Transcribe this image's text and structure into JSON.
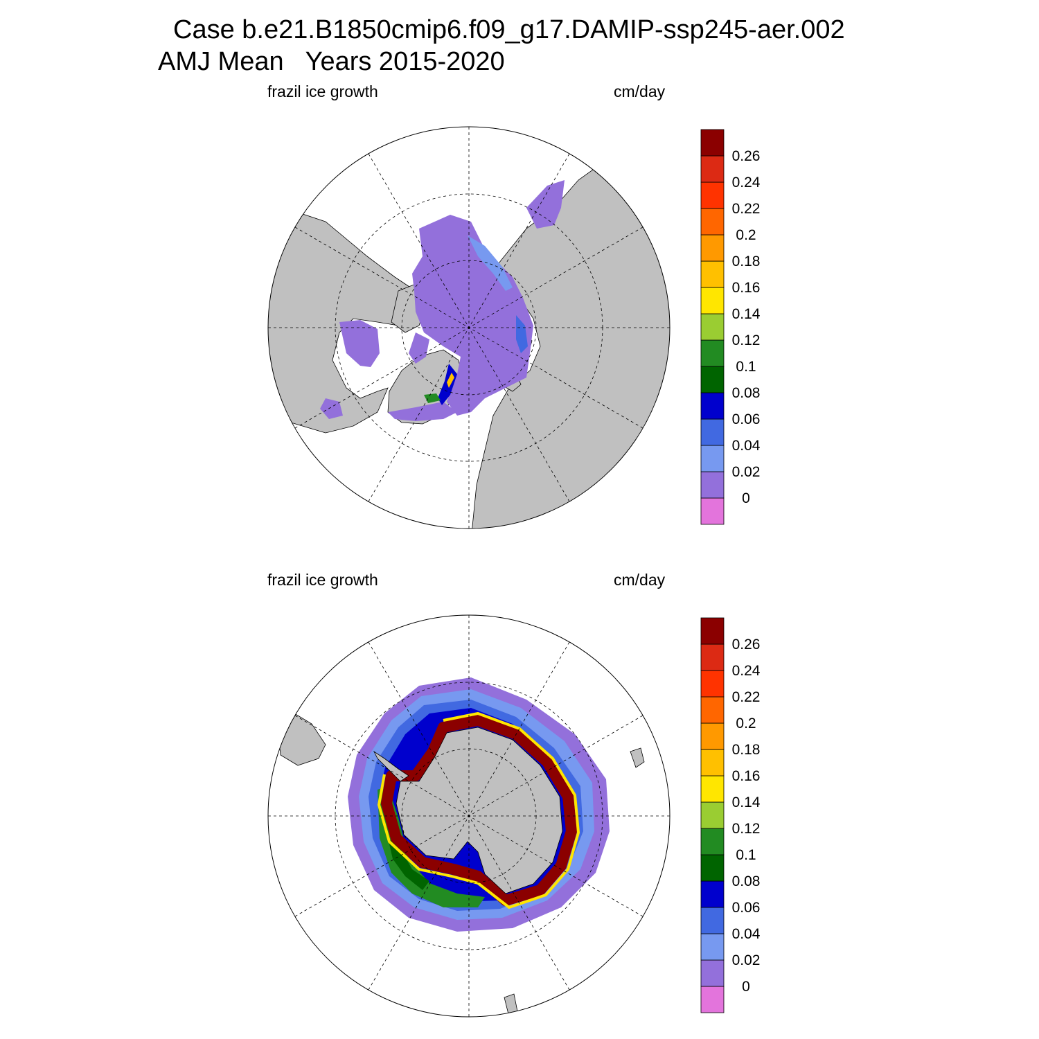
{
  "title": {
    "line1": "Case b.e21.B1850cmip6.f09_g17.DAMIP-ssp245-aer.002",
    "line2": "AMJ Mean   Years 2015-2020"
  },
  "panels": [
    {
      "id": "north",
      "hemisphere": "Northern Hemisphere",
      "left_label": "frazil ice growth",
      "right_label": "cm/day"
    },
    {
      "id": "south",
      "hemisphere": "Southern Hemisphere",
      "left_label": "frazil ice growth",
      "right_label": "cm/day"
    }
  ],
  "colorbar": {
    "tick_labels": [
      "0",
      "0.02",
      "0.04",
      "0.06",
      "0.08",
      "0.1",
      "0.12",
      "0.14",
      "0.16",
      "0.18",
      "0.2",
      "0.22",
      "0.24",
      "0.26"
    ],
    "colors_bottom_to_top": [
      "#e374dc",
      "#9370db",
      "#7799f0",
      "#4169e1",
      "#0000cd",
      "#006400",
      "#228b22",
      "#9acd32",
      "#ffe600",
      "#ffc000",
      "#ff9900",
      "#ff6600",
      "#ff3300",
      "#dc2a14",
      "#8b0000"
    ]
  },
  "map_colors": {
    "land": "#c0c0c0",
    "ocean_no_data": "#ffffff",
    "gridline": "#000000"
  }
}
